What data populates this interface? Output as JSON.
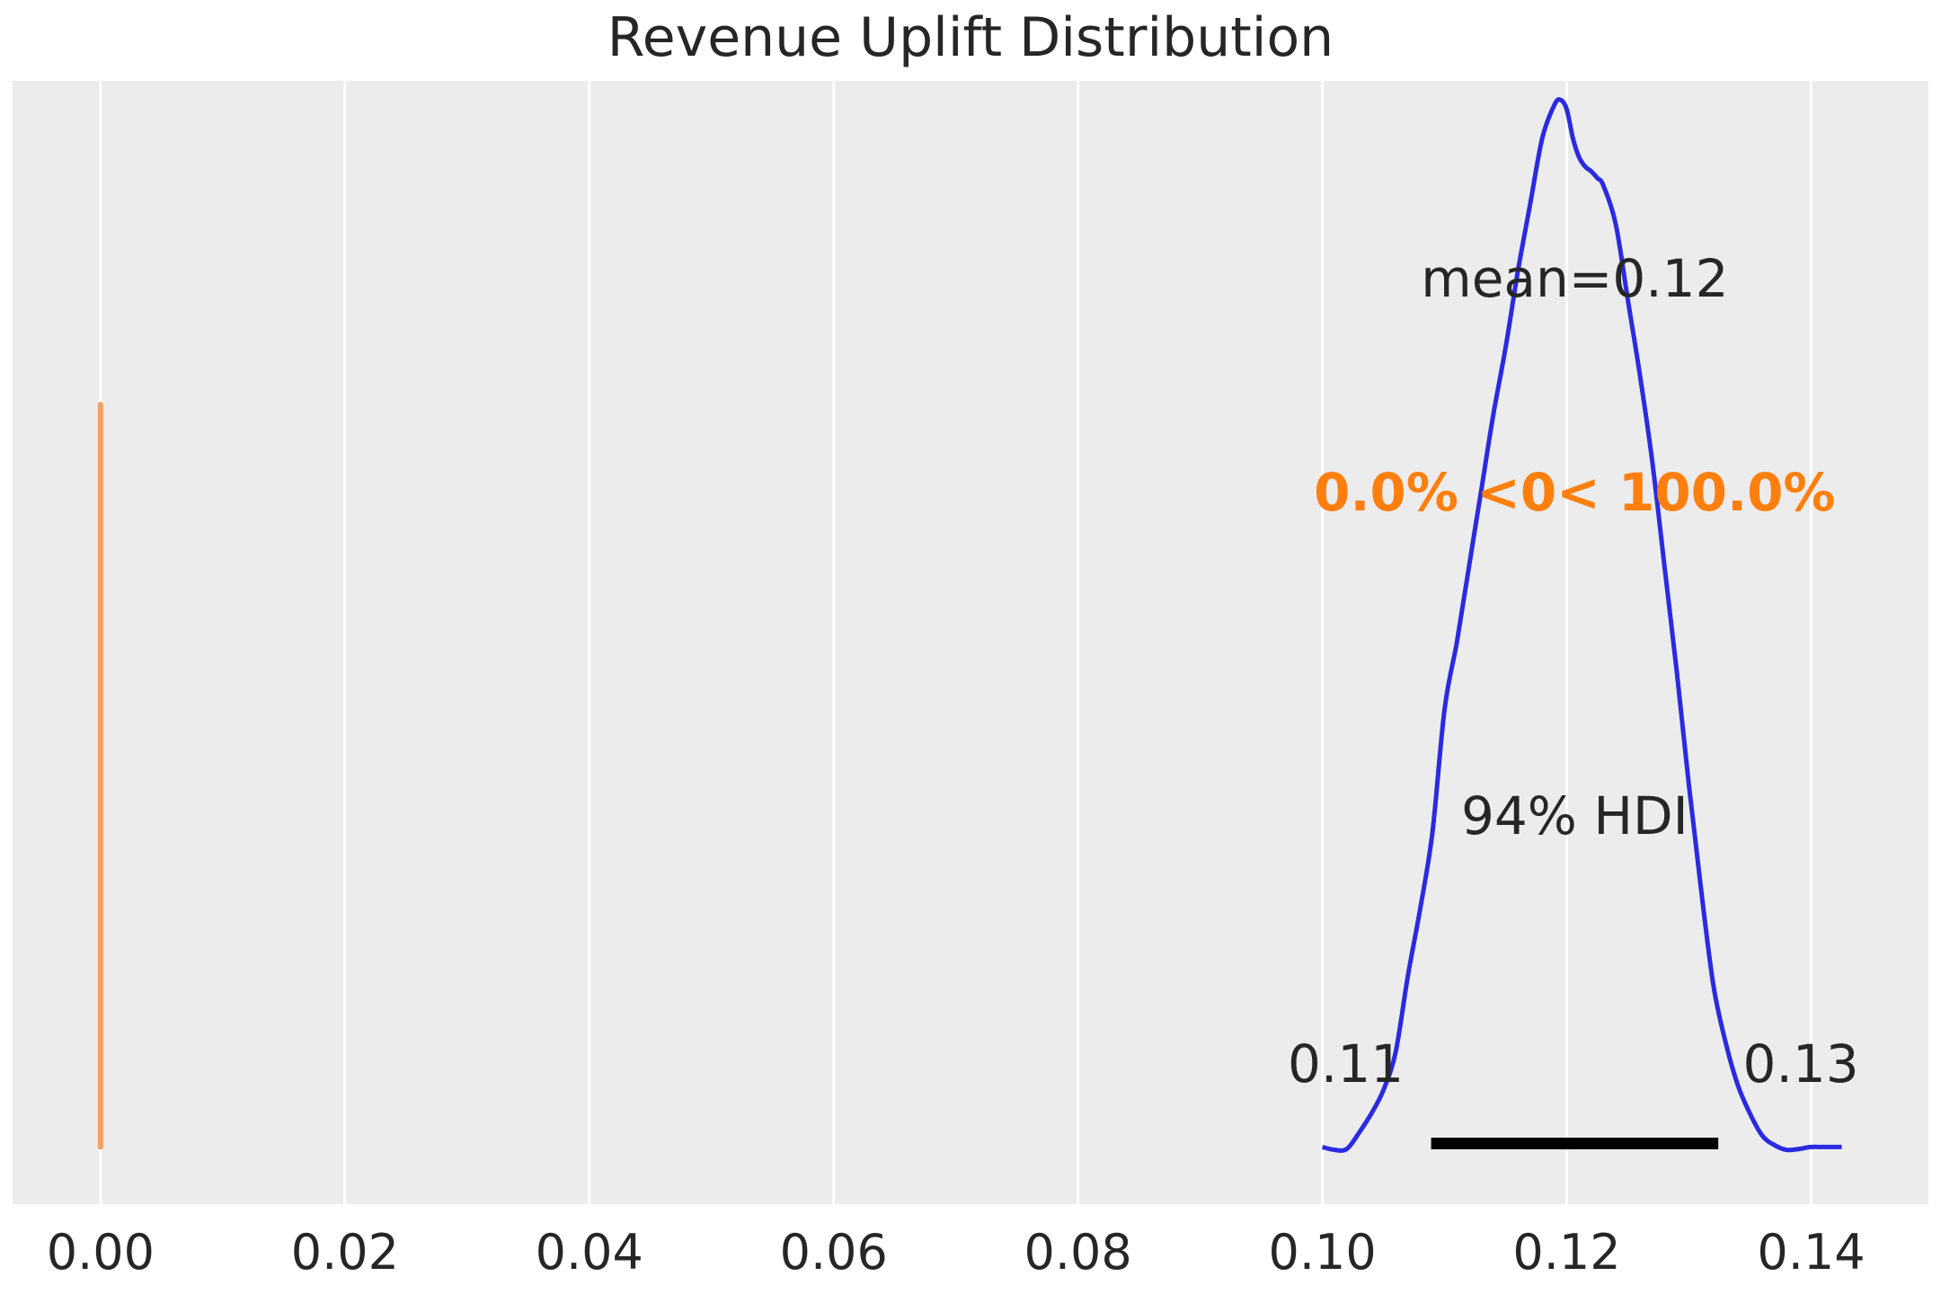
{
  "chart_data": {
    "type": "line",
    "title": "Revenue Uplift Distribution",
    "xlabel": "",
    "ylabel": "",
    "xlim": [
      -0.0072,
      0.1496
    ],
    "ylim": [
      -0.6,
      11.2
    ],
    "x_ticks": [
      0.0,
      0.02,
      0.04,
      0.06,
      0.08,
      0.1,
      0.12,
      0.14
    ],
    "x_tick_labels": [
      "0.00",
      "0.02",
      "0.04",
      "0.06",
      "0.08",
      "0.10",
      "0.12",
      "0.14"
    ],
    "grid": true,
    "colors": {
      "background": "#ececec",
      "grid": "#ffffff",
      "density": "#2a2ae0",
      "reference": "#f4a261",
      "reference_text": "#ff7f0e",
      "hdi": "#000000",
      "text": "#262626"
    },
    "density": {
      "x": [
        0.1,
        0.101,
        0.102,
        0.103,
        0.104,
        0.105,
        0.106,
        0.107,
        0.108,
        0.109,
        0.11,
        0.111,
        0.112,
        0.113,
        0.114,
        0.115,
        0.116,
        0.117,
        0.118,
        0.119,
        0.1195,
        0.12,
        0.1205,
        0.121,
        0.1215,
        0.122,
        0.1225,
        0.123,
        0.124,
        0.125,
        0.126,
        0.127,
        0.128,
        0.129,
        0.13,
        0.131,
        0.132,
        0.133,
        0.134,
        0.135,
        0.136,
        0.137,
        0.138,
        0.139,
        0.14,
        0.141,
        0.1425
      ],
      "y": [
        0.0,
        -0.03,
        -0.02,
        0.15,
        0.35,
        0.6,
        1.0,
        1.8,
        2.5,
        3.3,
        4.6,
        5.3,
        6.1,
        6.9,
        7.7,
        8.4,
        9.2,
        9.9,
        10.6,
        10.95,
        11.0,
        10.9,
        10.6,
        10.4,
        10.3,
        10.25,
        10.18,
        10.1,
        9.7,
        8.9,
        8.1,
        7.2,
        6.1,
        5.0,
        3.8,
        2.7,
        1.7,
        1.1,
        0.65,
        0.35,
        0.12,
        0.02,
        -0.03,
        -0.02,
        0.0,
        0.0,
        0.0
      ]
    },
    "reference_line": {
      "x": 0.0,
      "y_range": [
        0.0,
        7.8
      ]
    },
    "hdi": {
      "prob_label": "94% HDI",
      "low": 0.1089,
      "high": 0.1324,
      "low_label": "0.11",
      "high_label": "0.13"
    },
    "annotations": {
      "mean_label": "mean=0.12",
      "reference_label": "0.0% <0< 100.0%"
    }
  }
}
